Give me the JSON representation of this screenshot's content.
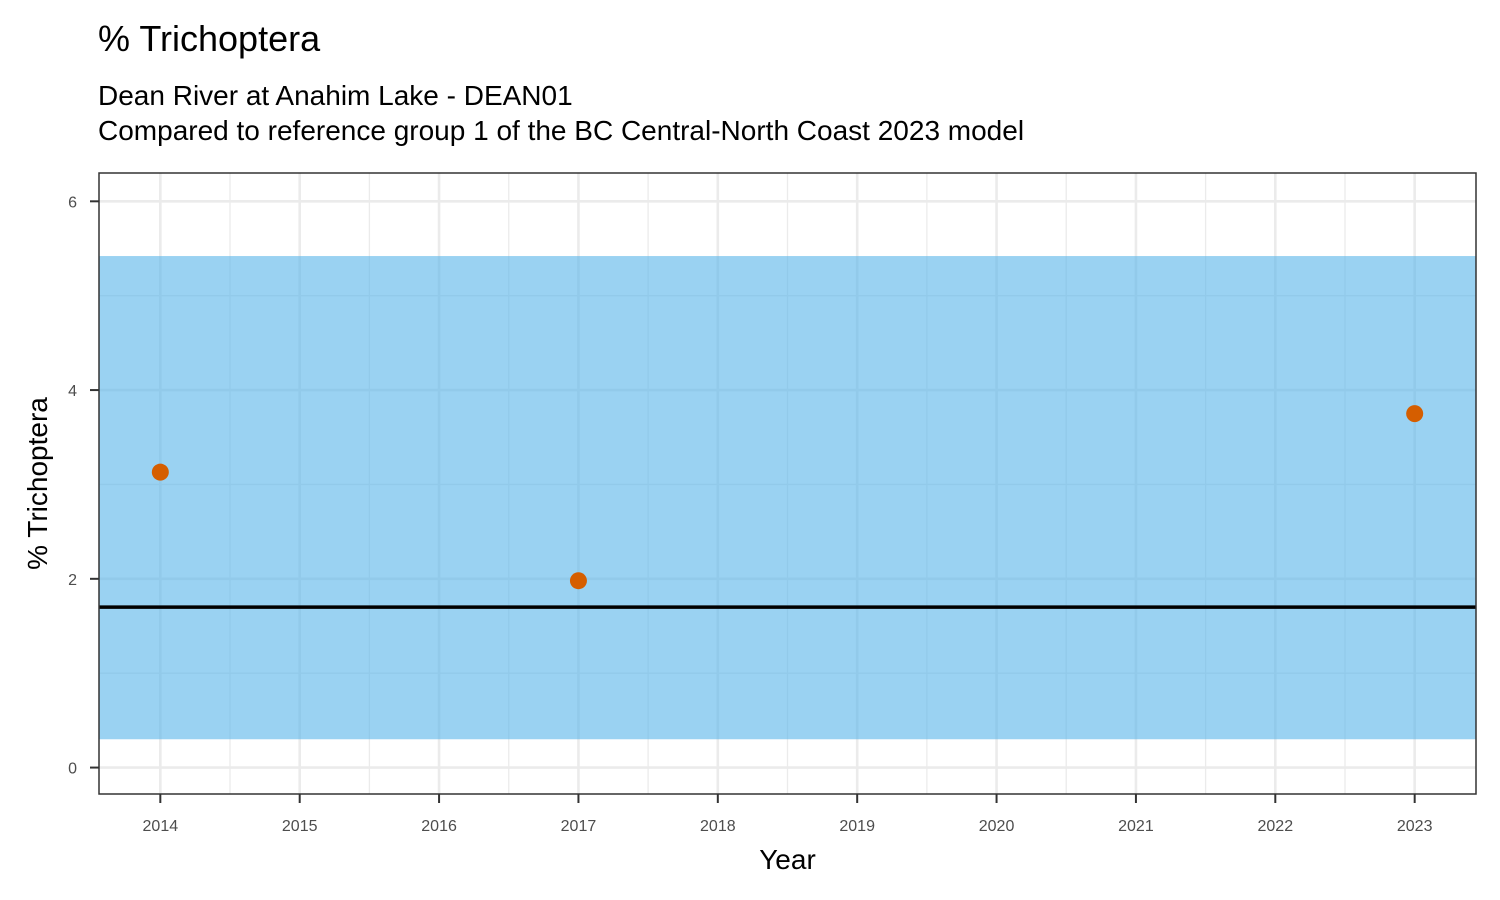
{
  "chart_data": {
    "type": "scatter",
    "title": "% Trichoptera",
    "subtitle_lines": [
      "Dean River at Anahim Lake - DEAN01",
      "Compared to reference group 1 of the BC Central-North Coast 2023 model"
    ],
    "xlabel": "Year",
    "ylabel": "% Trichoptera",
    "xlim": [
      2013.56,
      2023.44
    ],
    "ylim": [
      -0.28,
      6.3
    ],
    "x_ticks": [
      2014,
      2015,
      2016,
      2017,
      2018,
      2019,
      2020,
      2021,
      2022,
      2023
    ],
    "y_ticks": [
      0,
      2,
      4,
      6
    ],
    "reference_band": {
      "lower": 0.3,
      "upper": 5.42,
      "color": "#56B4E9"
    },
    "reference_line": {
      "value": 1.7,
      "color": "#000000"
    },
    "series": [
      {
        "color": "#D55E00",
        "points": [
          {
            "x": 2014,
            "y": 3.13
          },
          {
            "x": 2017,
            "y": 1.98
          },
          {
            "x": 2023,
            "y": 3.75
          }
        ]
      }
    ],
    "grid": true,
    "legend": "none"
  }
}
